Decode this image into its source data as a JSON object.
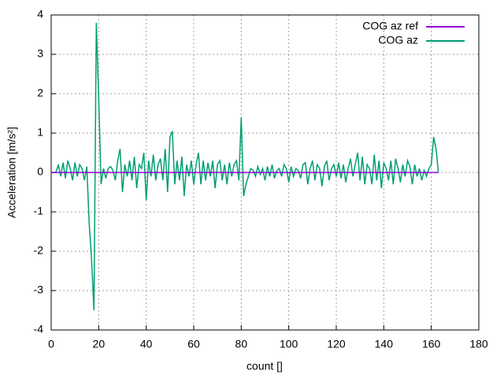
{
  "chart_data": {
    "type": "line",
    "xlabel": "count []",
    "ylabel": "Acceleration [m/s²]",
    "xlim": [
      0,
      180
    ],
    "ylim": [
      -4,
      4
    ],
    "xticks": [
      0,
      20,
      40,
      60,
      80,
      100,
      120,
      140,
      160,
      180
    ],
    "yticks": [
      -4,
      -3,
      -2,
      -1,
      0,
      1,
      2,
      3,
      4
    ],
    "grid": true,
    "legend": "top-right",
    "series": [
      {
        "name": "COG az ref",
        "color": "#9400d3",
        "x": [
          0,
          163
        ],
        "values": [
          0,
          0
        ]
      },
      {
        "name": "COG az",
        "color": "#009e73",
        "x": [
          0,
          1,
          2,
          3,
          4,
          5,
          6,
          7,
          8,
          9,
          10,
          11,
          12,
          13,
          14,
          15,
          16,
          17,
          18,
          19,
          20,
          21,
          22,
          23,
          24,
          25,
          26,
          27,
          28,
          29,
          30,
          31,
          32,
          33,
          34,
          35,
          36,
          37,
          38,
          39,
          40,
          41,
          42,
          43,
          44,
          45,
          46,
          47,
          48,
          49,
          50,
          51,
          52,
          53,
          54,
          55,
          56,
          57,
          58,
          59,
          60,
          61,
          62,
          63,
          64,
          65,
          66,
          67,
          68,
          69,
          70,
          71,
          72,
          73,
          74,
          75,
          76,
          77,
          78,
          79,
          80,
          81,
          82,
          83,
          84,
          85,
          86,
          87,
          88,
          89,
          90,
          91,
          92,
          93,
          94,
          95,
          96,
          97,
          98,
          99,
          100,
          101,
          102,
          103,
          104,
          105,
          106,
          107,
          108,
          109,
          110,
          111,
          112,
          113,
          114,
          115,
          116,
          117,
          118,
          119,
          120,
          121,
          122,
          123,
          124,
          125,
          126,
          127,
          128,
          129,
          130,
          131,
          132,
          133,
          134,
          135,
          136,
          137,
          138,
          139,
          140,
          141,
          142,
          143,
          144,
          145,
          146,
          147,
          148,
          149,
          150,
          151,
          152,
          153,
          154,
          155,
          156,
          157,
          158,
          159,
          160,
          161,
          162,
          163
        ],
        "values": [
          0,
          0,
          0,
          0.2,
          -0.1,
          0.25,
          -0.15,
          0.3,
          0.1,
          -0.2,
          0.25,
          -0.1,
          0.2,
          0.1,
          -0.2,
          0.15,
          -1.3,
          -2.2,
          -3.5,
          3.8,
          1.9,
          -0.3,
          0.1,
          -0.15,
          0.1,
          0.15,
          0.05,
          -0.2,
          0.3,
          0.6,
          -0.5,
          0.2,
          -0.1,
          0.3,
          -0.2,
          0.4,
          -0.4,
          0.2,
          0.1,
          0.5,
          -0.7,
          0.3,
          -0.1,
          0.45,
          -0.2,
          0.2,
          0.35,
          -0.2,
          0.6,
          -0.5,
          0.9,
          1.05,
          -0.3,
          0.3,
          -0.2,
          0.4,
          -0.6,
          0.2,
          -0.1,
          0.3,
          -0.3,
          0.2,
          0.5,
          -0.3,
          0.3,
          -0.2,
          0.25,
          -0.1,
          0.3,
          -0.4,
          0.2,
          0.3,
          -0.2,
          0.2,
          -0.3,
          0.25,
          -0.1,
          0.2,
          0.3,
          -0.2,
          1.4,
          -0.6,
          -0.3,
          -0.1,
          0.1,
          0.05,
          -0.1,
          0.15,
          -0.05,
          0.1,
          -0.2,
          0.15,
          -0.1,
          0.2,
          -0.15,
          0.05,
          0.1,
          -0.1,
          0.2,
          0.1,
          -0.25,
          0.15,
          -0.1,
          0.1,
          0.05,
          -0.15,
          0.2,
          0.25,
          -0.3,
          0.1,
          0.3,
          -0.2,
          0.2,
          0.1,
          -0.35,
          0.15,
          0.3,
          -0.2,
          0.1,
          0.2,
          -0.1,
          0.25,
          -0.15,
          0.2,
          -0.25,
          0.1,
          0.35,
          -0.1,
          0.2,
          0.5,
          -0.2,
          0.4,
          -0.3,
          0.2,
          0.1,
          -0.3,
          0.45,
          -0.2,
          0.3,
          -0.4,
          0.25,
          0.1,
          -0.2,
          0.3,
          -0.3,
          0.35,
          0.1,
          -0.25,
          0.2,
          -0.1,
          0.3,
          0.15,
          -0.3,
          0.2,
          -0.1,
          0.1,
          -0.2,
          0.05,
          -0.1,
          0.1,
          0.2,
          0.9,
          0.6,
          0
        ]
      }
    ]
  }
}
